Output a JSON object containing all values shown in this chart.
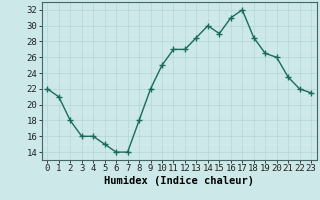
{
  "x": [
    0,
    1,
    2,
    3,
    4,
    5,
    6,
    7,
    8,
    9,
    10,
    11,
    12,
    13,
    14,
    15,
    16,
    17,
    18,
    19,
    20,
    21,
    22,
    23
  ],
  "y": [
    22,
    21,
    18,
    16,
    16,
    15,
    14,
    14,
    18,
    22,
    25,
    27,
    27,
    28.5,
    30,
    29,
    31,
    32,
    28.5,
    26.5,
    26,
    23.5,
    22,
    21.5
  ],
  "title": "",
  "xlabel": "Humidex (Indice chaleur)",
  "ylabel": "",
  "ylim": [
    13,
    33
  ],
  "xlim": [
    -0.5,
    23.5
  ],
  "yticks": [
    14,
    16,
    18,
    20,
    22,
    24,
    26,
    28,
    30,
    32
  ],
  "xticks": [
    0,
    1,
    2,
    3,
    4,
    5,
    6,
    7,
    8,
    9,
    10,
    11,
    12,
    13,
    14,
    15,
    16,
    17,
    18,
    19,
    20,
    21,
    22,
    23
  ],
  "line_color": "#1a6b5e",
  "marker": "+",
  "bg_color": "#cce8e8",
  "grid_major_color": "#b8d8d8",
  "grid_minor_color": "#d4ecec",
  "axis_color": "#446666",
  "tick_color": "#222222",
  "xlabel_fontsize": 7.5,
  "tick_fontsize": 6.5,
  "linewidth": 1.0,
  "markersize": 4,
  "marker_linewidth": 1.0
}
